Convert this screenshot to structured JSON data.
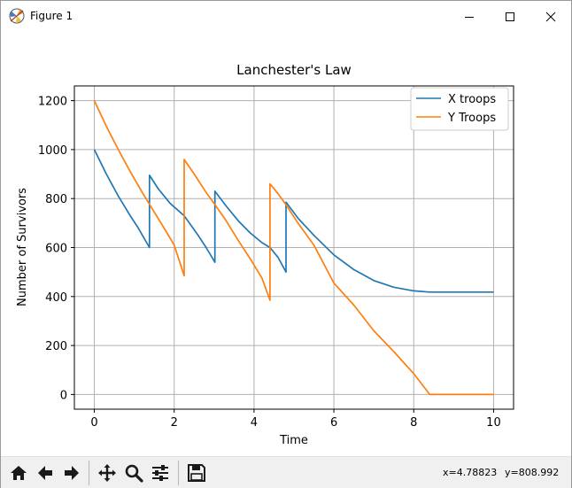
{
  "window": {
    "title": "Figure 1",
    "controls": [
      "minimize",
      "maximize",
      "close"
    ]
  },
  "chart_data": {
    "type": "line",
    "title": "Lanchester's Law",
    "xlabel": "Time",
    "ylabel": "Number of Survivors",
    "xlim": [
      -0.5,
      10.5
    ],
    "ylim": [
      -60,
      1260
    ],
    "xticks": [
      0,
      2,
      4,
      6,
      8,
      10
    ],
    "yticks": [
      0,
      200,
      400,
      600,
      800,
      1000,
      1200
    ],
    "grid": true,
    "legend_position": "top-right",
    "series": [
      {
        "name": "X troops",
        "color": "#1f77b4",
        "points": [
          [
            0,
            1000
          ],
          [
            0.3,
            900
          ],
          [
            0.6,
            810
          ],
          [
            0.9,
            730
          ],
          [
            1.1,
            680
          ],
          [
            1.38,
            600
          ],
          [
            1.38,
            895
          ],
          [
            1.6,
            840
          ],
          [
            1.9,
            780
          ],
          [
            2.25,
            730
          ],
          [
            2.6,
            650
          ],
          [
            2.8,
            600
          ],
          [
            3.02,
            540
          ],
          [
            3.02,
            830
          ],
          [
            3.3,
            770
          ],
          [
            3.6,
            710
          ],
          [
            3.9,
            660
          ],
          [
            4.2,
            620
          ],
          [
            4.4,
            600
          ],
          [
            4.6,
            560
          ],
          [
            4.8,
            500
          ],
          [
            4.8,
            785
          ],
          [
            5.1,
            720
          ],
          [
            5.5,
            650
          ],
          [
            6.0,
            570
          ],
          [
            6.5,
            510
          ],
          [
            7.0,
            465
          ],
          [
            7.5,
            438
          ],
          [
            8.0,
            423
          ],
          [
            8.4,
            418
          ],
          [
            9.0,
            418
          ],
          [
            10.0,
            418
          ]
        ]
      },
      {
        "name": "Y Troops",
        "color": "#ff7f0e",
        "points": [
          [
            0,
            1200
          ],
          [
            0.3,
            1095
          ],
          [
            0.6,
            1000
          ],
          [
            0.9,
            910
          ],
          [
            1.2,
            825
          ],
          [
            1.5,
            745
          ],
          [
            1.8,
            665
          ],
          [
            2.0,
            610
          ],
          [
            2.25,
            485
          ],
          [
            2.25,
            960
          ],
          [
            2.5,
            900
          ],
          [
            2.8,
            825
          ],
          [
            3.0,
            780
          ],
          [
            3.3,
            710
          ],
          [
            3.6,
            630
          ],
          [
            3.9,
            555
          ],
          [
            4.2,
            475
          ],
          [
            4.4,
            385
          ],
          [
            4.4,
            860
          ],
          [
            4.6,
            820
          ],
          [
            4.8,
            775
          ],
          [
            5.1,
            700
          ],
          [
            5.5,
            610
          ],
          [
            6.0,
            455
          ],
          [
            6.5,
            365
          ],
          [
            7.0,
            260
          ],
          [
            7.5,
            175
          ],
          [
            8.0,
            85
          ],
          [
            8.4,
            0
          ],
          [
            9.0,
            0
          ],
          [
            10.0,
            0
          ]
        ]
      }
    ]
  },
  "toolbar": {
    "tools": [
      "home-icon",
      "back-arrow-icon",
      "forward-arrow-icon",
      "pan-icon",
      "zoom-icon",
      "configure-subplots-icon",
      "save-icon"
    ],
    "x_readout": "x=4.78823",
    "y_readout": "y=808.992"
  }
}
